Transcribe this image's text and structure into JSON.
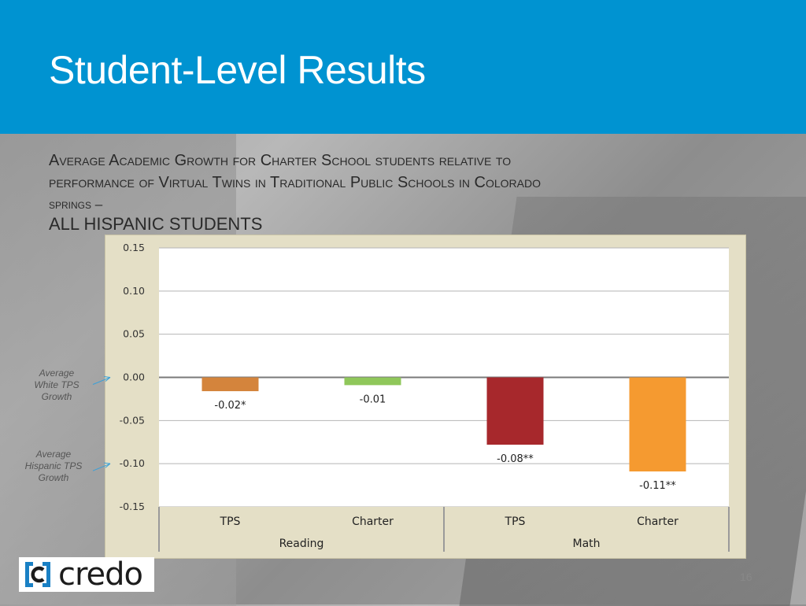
{
  "slide": {
    "title": "Student-Level Results",
    "subtitle_line1": "Average Academic Growth for Charter School students relative to",
    "subtitle_line2": "performance of Virtual Twins in Traditional Public Schools in Colorado",
    "subtitle_line3": "springs –",
    "subtitle_line4": "ALL HISPANIC STUDENTS",
    "page_number": "16",
    "logo_text": "credo",
    "logo_icon": "credo-bracket-c-icon"
  },
  "annotations": {
    "white": "Average White TPS Growth",
    "hispanic": "Average Hispanic TPS Growth"
  },
  "colors": {
    "header": "#0093d1",
    "plot_bg": "#ffffff",
    "chart_frame": "#e4dfc6",
    "arrow": "#3aa0d8"
  },
  "chart_data": {
    "type": "bar",
    "title": "",
    "xlabel": "",
    "ylabel": "",
    "ylim": [
      -0.15,
      0.15
    ],
    "yticks": [
      "0.15",
      "0.10",
      "0.05",
      "0.00",
      "-0.05",
      "-0.10",
      "-0.15"
    ],
    "ytick_values": [
      0.15,
      0.1,
      0.05,
      0.0,
      -0.05,
      -0.1,
      -0.15
    ],
    "groups": [
      "Reading",
      "Math"
    ],
    "categories": [
      "TPS",
      "Charter",
      "TPS",
      "Charter"
    ],
    "values": [
      -0.016,
      -0.009,
      -0.078,
      -0.109
    ],
    "data_labels": [
      "-0.02*",
      "-0.01",
      "-0.08**",
      "-0.11**"
    ],
    "bar_colors": [
      "#d4843c",
      "#8fc75a",
      "#a7282c",
      "#f59a30"
    ],
    "grid": true,
    "legend": "none"
  }
}
